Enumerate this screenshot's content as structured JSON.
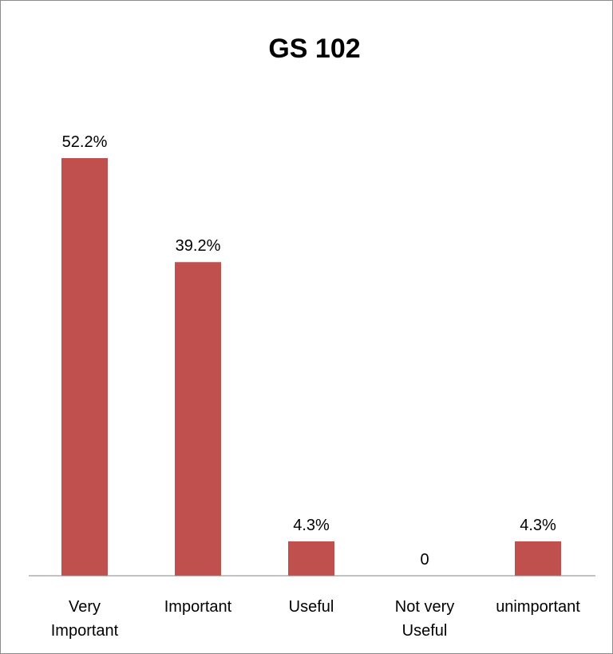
{
  "chart_data": {
    "type": "bar",
    "title": "GS 102",
    "xlabel": "",
    "ylabel": "",
    "categories": [
      [
        "Very",
        "Important"
      ],
      [
        "Important"
      ],
      [
        "Useful"
      ],
      [
        "Not very",
        "Useful"
      ],
      [
        "unimportant"
      ]
    ],
    "values": [
      52.2,
      39.2,
      4.3,
      0,
      4.3
    ],
    "data_labels": [
      "52.2%",
      "39.2%",
      "4.3%",
      "0",
      "4.3%"
    ],
    "ylim": [
      0,
      60
    ],
    "grid": false,
    "legend": "none",
    "bar_color": "#c0504d",
    "axis_color": "#868686"
  }
}
